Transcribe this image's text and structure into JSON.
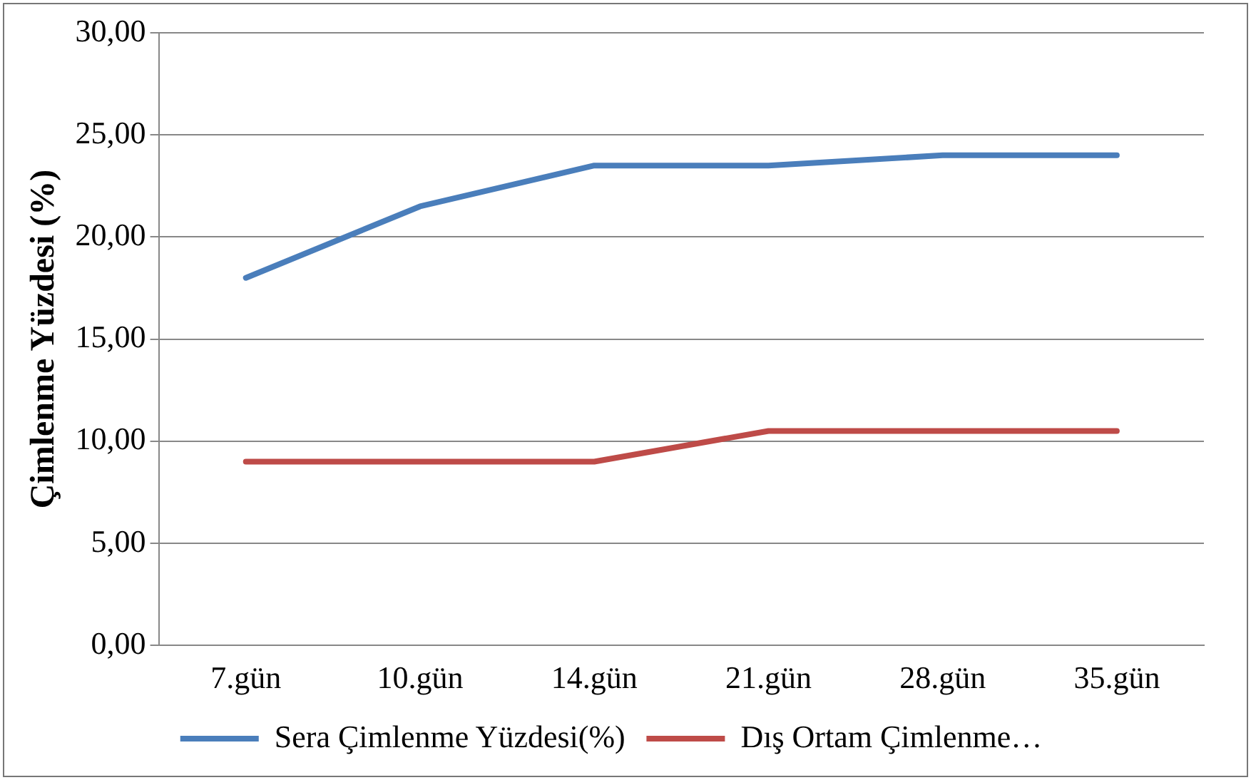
{
  "chart_data": {
    "type": "line",
    "ylabel": "Çimlenme Yüzdesi (%)",
    "categories": [
      "7.gün",
      "10.gün",
      "14.gün",
      "21.gün",
      "28.gün",
      "35.gün"
    ],
    "series": [
      {
        "name": "Sera Çimlenme Yüzdesi(%)",
        "color": "#4a7ebb",
        "values": [
          18,
          21.5,
          23.5,
          23.5,
          24,
          24
        ]
      },
      {
        "name": "Dış Ortam Çimlenme…",
        "color": "#be4b48",
        "values": [
          9,
          9,
          9,
          10.5,
          10.5,
          10.5
        ]
      }
    ],
    "ylim": [
      0,
      30
    ],
    "yticks": [
      {
        "value": 0,
        "label": "0,00"
      },
      {
        "value": 5,
        "label": "5,00"
      },
      {
        "value": 10,
        "label": "10,00"
      },
      {
        "value": 15,
        "label": "15,00"
      },
      {
        "value": 20,
        "label": "20,00"
      },
      {
        "value": 25,
        "label": "25,00"
      },
      {
        "value": 30,
        "label": "30,00"
      }
    ],
    "grid": "y",
    "legend": "bottom",
    "marker": "none",
    "line_style": "solid"
  }
}
